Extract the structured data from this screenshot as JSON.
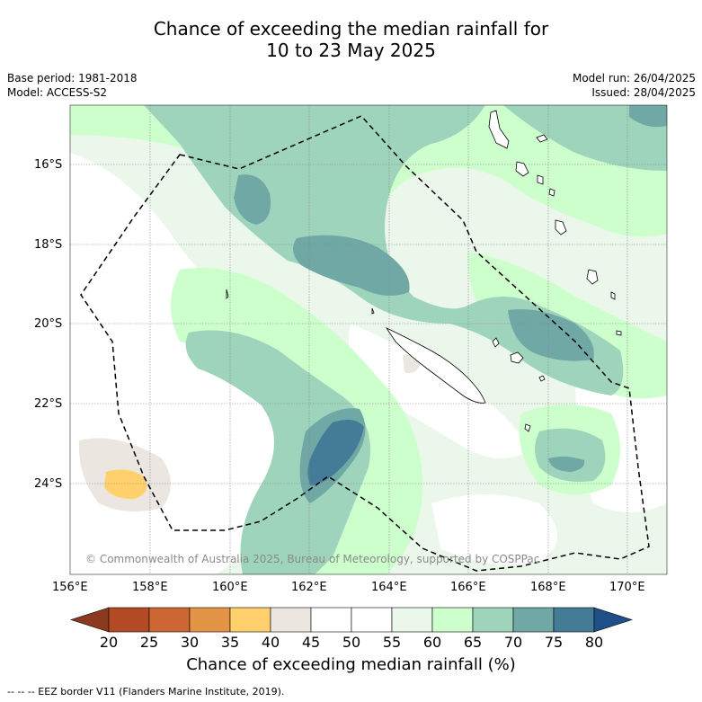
{
  "header": {
    "title_line1": "Chance of exceeding the median rainfall for",
    "title_line2": "10 to 23 May 2025",
    "base_period": "Base period: 1981-2018",
    "model": "Model: ACCESS-S2",
    "model_run": "Model run: 26/04/2025",
    "issued": "Issued: 28/04/2025"
  },
  "map": {
    "lat_labels": [
      "16°S",
      "18°S",
      "20°S",
      "22°S",
      "24°S"
    ],
    "lon_labels": [
      "156°E",
      "158°E",
      "160°E",
      "162°E",
      "164°E",
      "166°E",
      "168°E",
      "170°E"
    ],
    "copyright": "© Commonwealth of Australia 2025, Bureau of Meteorology, supported by COSPPac",
    "ocean_color": "#ffffff"
  },
  "colorbar": {
    "ticks": [
      "20",
      "25",
      "30",
      "35",
      "40",
      "45",
      "50",
      "55",
      "60",
      "65",
      "70",
      "75",
      "80"
    ],
    "colors": [
      "#8b3a1f",
      "#b34a24",
      "#cc6633",
      "#e39446",
      "#ffd06b",
      "#ece6e1",
      "#ffffff",
      "#ffffff",
      "#ebf7ea",
      "#ccffcc",
      "#9ed4bb",
      "#6fa8a5",
      "#447c98",
      "#1f4f88"
    ],
    "title": "Chance of exceeding median rainfall (%)"
  },
  "footnote": "-- -- -- EEZ border V11 (Flanders Marine Institute, 2019)."
}
